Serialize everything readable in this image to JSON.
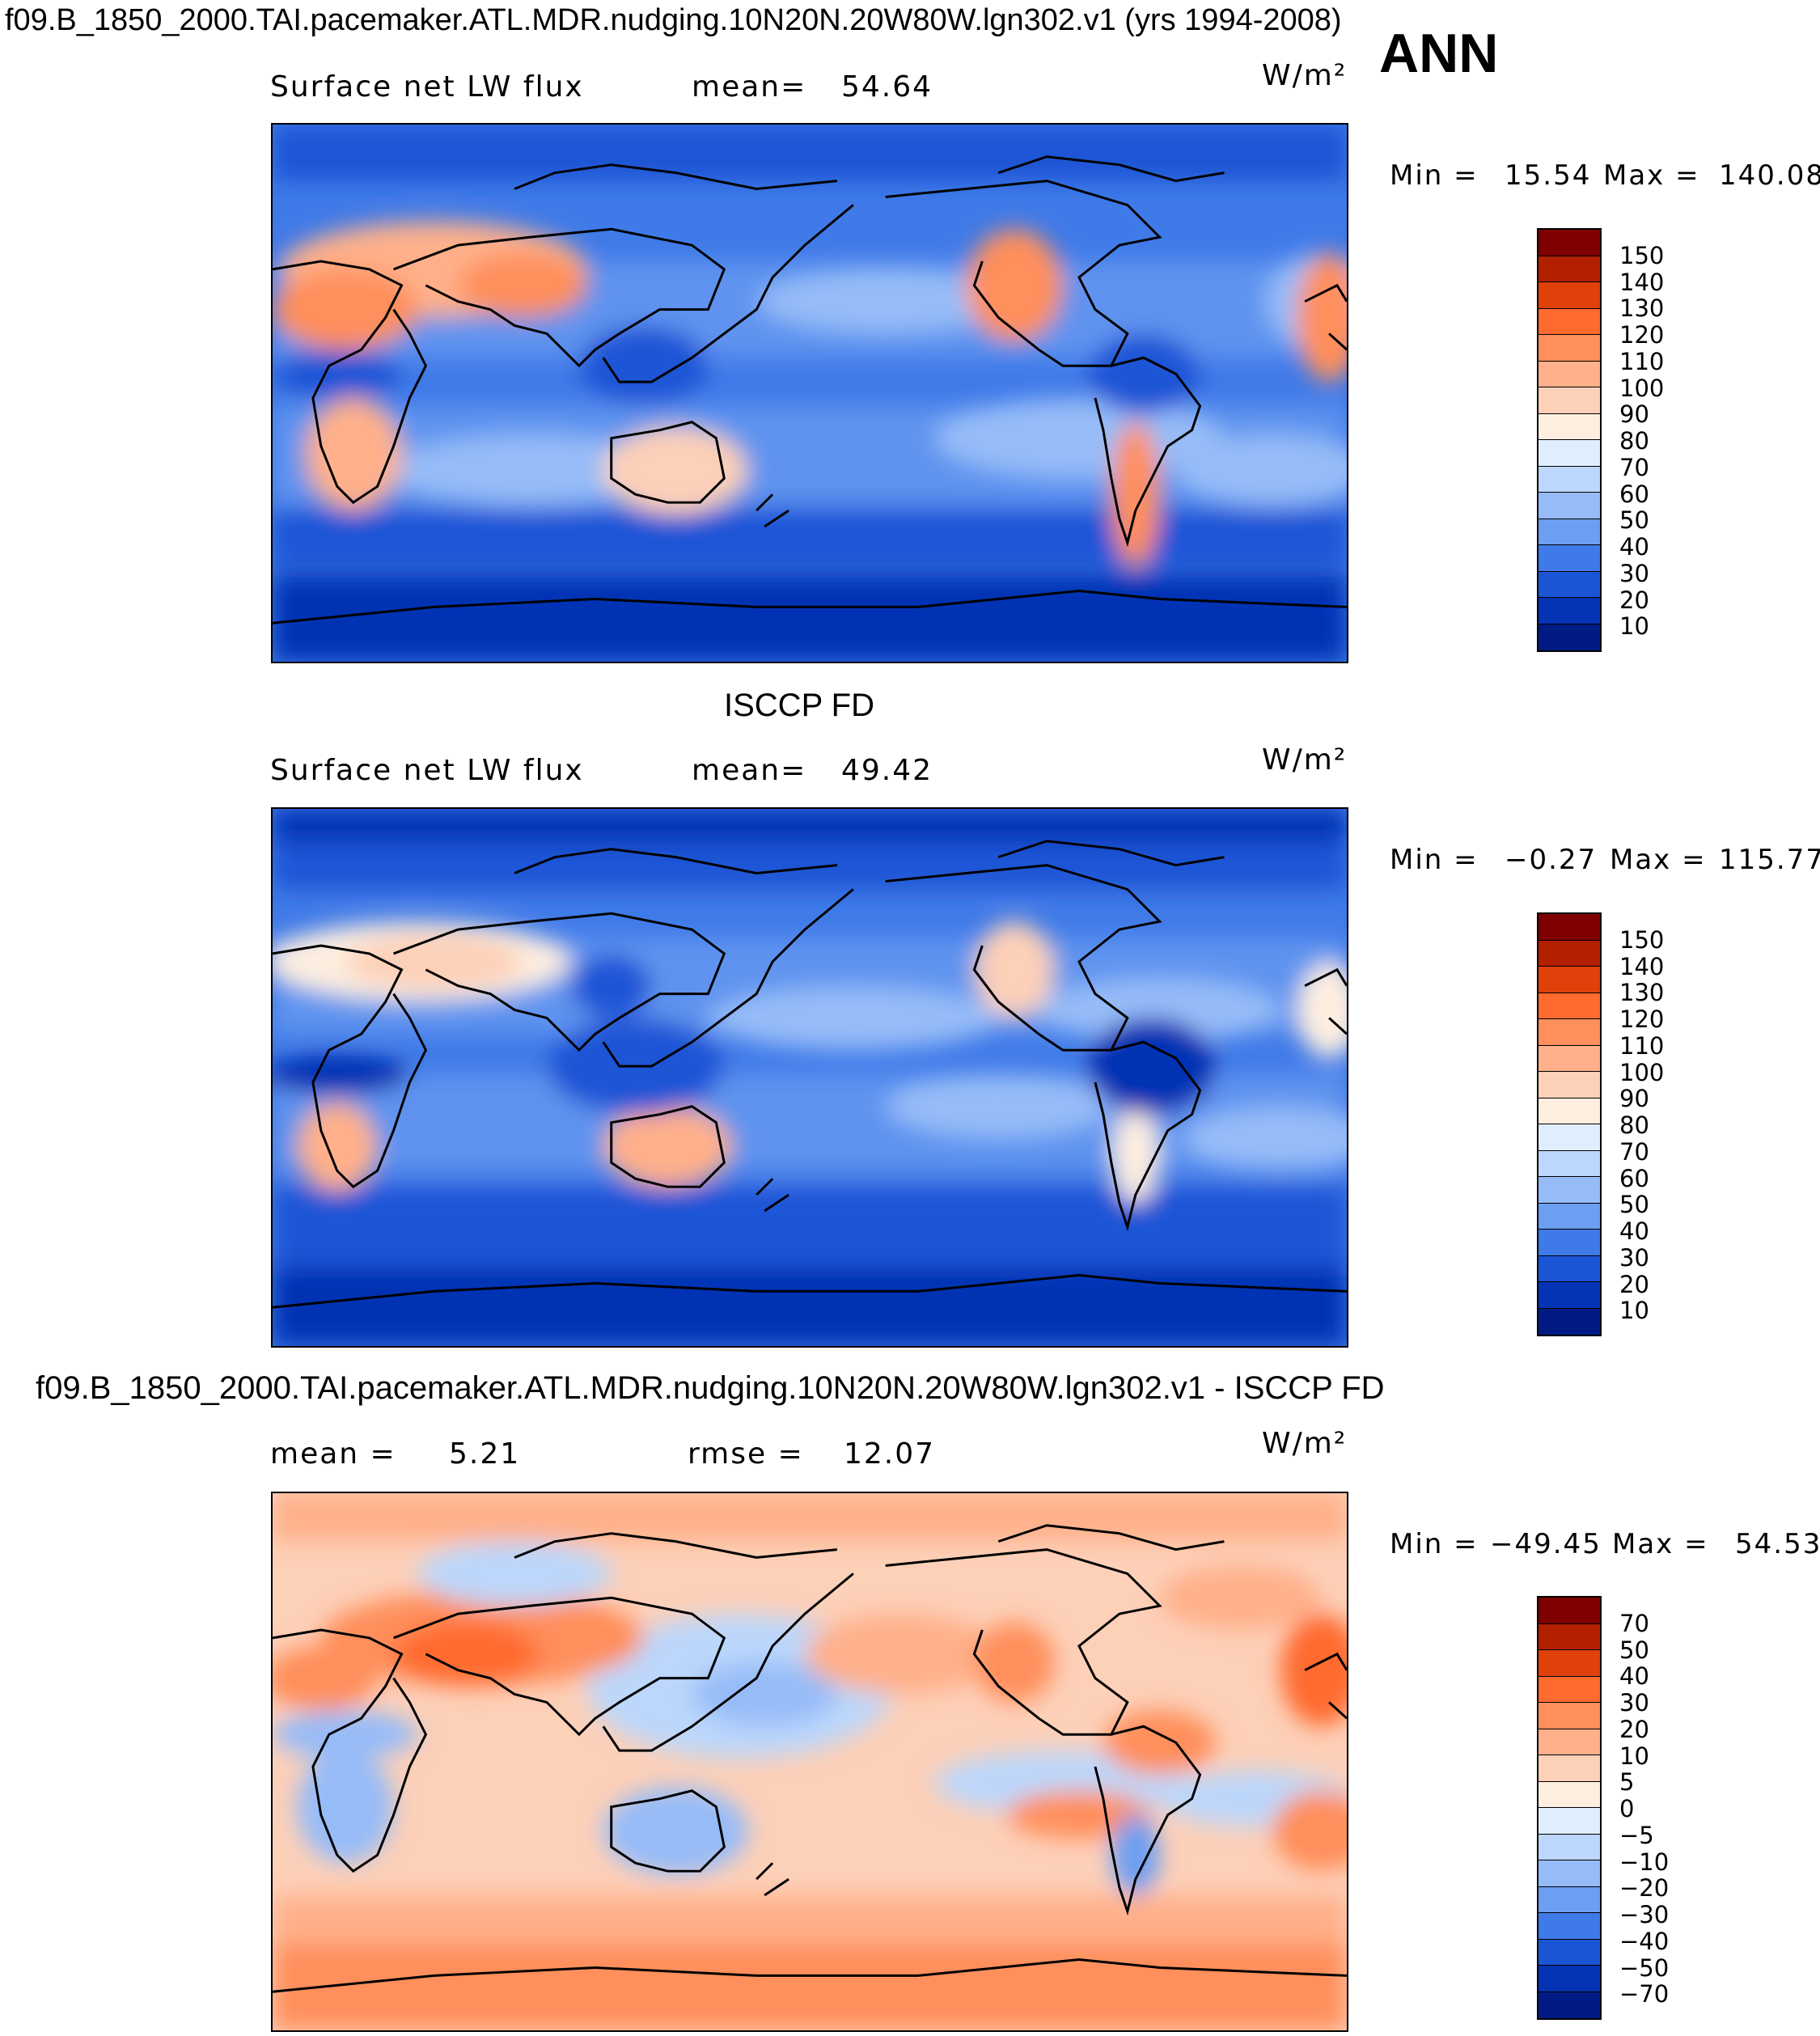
{
  "header": {
    "main_title": "f09.B_1850_2000.TAI.pacemaker.ATL.MDR.nudging.10N20N.20W80W.lgn302.v1 (yrs 1994-2008)",
    "season": "ANN"
  },
  "chart_data": [
    {
      "type": "heatmap",
      "panel": "model",
      "variable": "Surface net LW flux",
      "mean_label": "mean=",
      "mean": "54.64",
      "units": "W/m²",
      "min_label": "Min =",
      "min": "15.54",
      "max_label": "Max =",
      "max": "140.08",
      "colorbar": {
        "levels": [
          "150",
          "140",
          "130",
          "120",
          "110",
          "100",
          "90",
          "80",
          "70",
          "60",
          "50",
          "40",
          "30",
          "20",
          "10"
        ],
        "colors": [
          "#7f0000",
          "#b22000",
          "#e0400a",
          "#ff6a2e",
          "#ff8f5c",
          "#ffb08a",
          "#fdd0b8",
          "#fdeee0",
          "#dfeefc",
          "#bcd7fb",
          "#96bcf8",
          "#6c9ef2",
          "#3f7ae8",
          "#1a55d6",
          "#0433b4",
          "#001c84"
        ]
      }
    },
    {
      "type": "heatmap",
      "panel": "observations",
      "panel_title": "ISCCP FD",
      "variable": "Surface net LW flux",
      "mean_label": "mean=",
      "mean": "49.42",
      "units": "W/m²",
      "min_label": "Min =",
      "min": "−0.27",
      "max_label": "Max =",
      "max": "115.77",
      "colorbar": {
        "levels": [
          "150",
          "140",
          "130",
          "120",
          "110",
          "100",
          "90",
          "80",
          "70",
          "60",
          "50",
          "40",
          "30",
          "20",
          "10"
        ],
        "colors": [
          "#7f0000",
          "#b22000",
          "#e0400a",
          "#ff6a2e",
          "#ff8f5c",
          "#ffb08a",
          "#fdd0b8",
          "#fdeee0",
          "#dfeefc",
          "#bcd7fb",
          "#96bcf8",
          "#6c9ef2",
          "#3f7ae8",
          "#1a55d6",
          "#0433b4",
          "#001c84"
        ]
      }
    },
    {
      "type": "heatmap",
      "panel": "difference",
      "panel_title": "f09.B_1850_2000.TAI.pacemaker.ATL.MDR.nudging.10N20N.20W80W.lgn302.v1 - ISCCP FD",
      "mean_label": "mean =",
      "mean": "5.21",
      "rmse_label": "rmse =",
      "rmse": "12.07",
      "units": "W/m²",
      "min_label": "Min =",
      "min": "−49.45",
      "max_label": "Max =",
      "max": "54.53",
      "colorbar": {
        "levels": [
          "70",
          "50",
          "40",
          "30",
          "20",
          "10",
          "5",
          "0",
          "−5",
          "−10",
          "−20",
          "−30",
          "−40",
          "−50",
          "−70"
        ],
        "colors": [
          "#7f0000",
          "#b22000",
          "#e0400a",
          "#ff6a2e",
          "#ff8f5c",
          "#ffb08a",
          "#fdd0b8",
          "#fdeee0",
          "#dfeefc",
          "#bcd7fb",
          "#96bcf8",
          "#6c9ef2",
          "#3f7ae8",
          "#1a55d6",
          "#0433b4",
          "#001c84"
        ]
      }
    }
  ]
}
